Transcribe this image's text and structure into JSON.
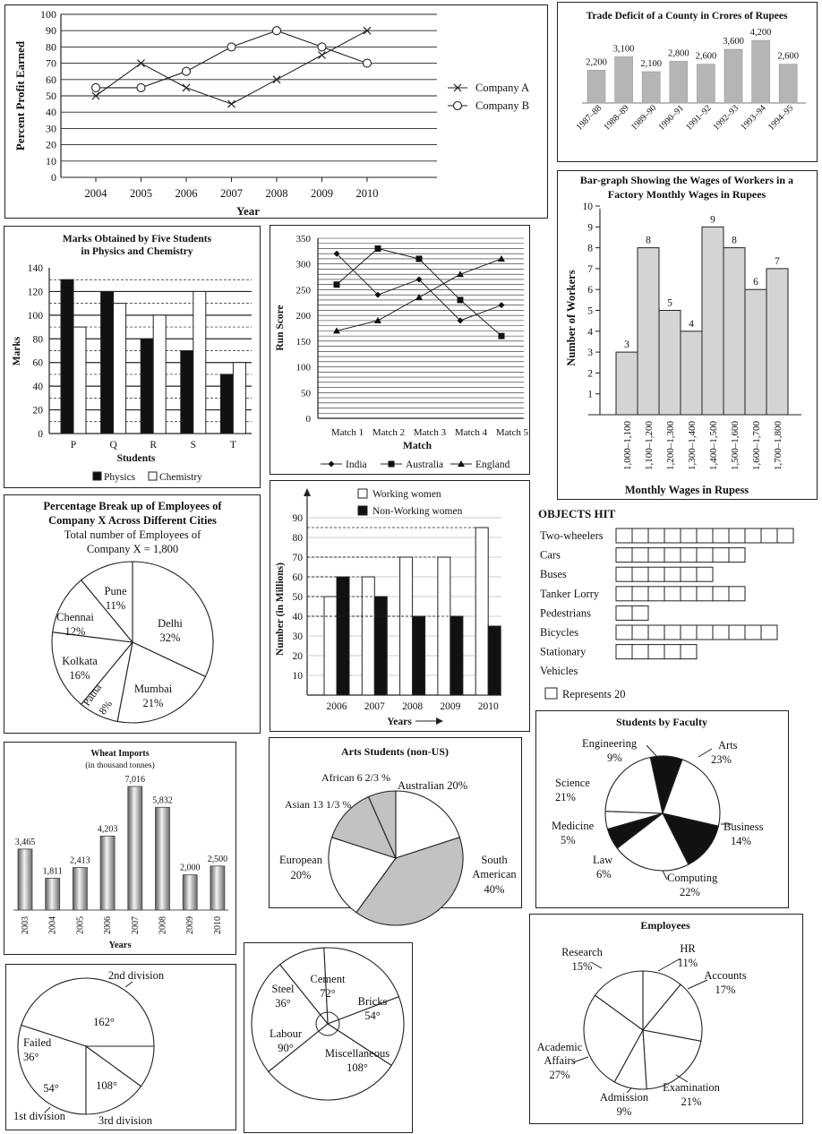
{
  "chart_data": [
    {
      "id": "profit",
      "type": "line",
      "ylabel": "Percent Profit Earned",
      "xlabel": "Year",
      "x": [
        "2004",
        "2005",
        "2006",
        "2007",
        "2008",
        "2009",
        "2010"
      ],
      "ylim": [
        0,
        100
      ],
      "yticks": [
        0,
        10,
        20,
        30,
        40,
        50,
        60,
        70,
        80,
        90,
        100
      ],
      "grid": true,
      "legend": "right",
      "series": [
        {
          "name": "Company A",
          "marker": "x",
          "values": [
            50,
            70,
            55,
            45,
            60,
            75,
            90
          ]
        },
        {
          "name": "Company B",
          "marker": "o",
          "values": [
            55,
            55,
            65,
            80,
            90,
            80,
            70
          ]
        }
      ]
    },
    {
      "id": "deficit",
      "type": "bar",
      "title": "Trade Deficit of a County in Crores of Rupees",
      "categories": [
        "1987–88",
        "1988–89",
        "1989–90",
        "1990–91",
        "1991–92",
        "1992–93",
        "1993–94",
        "1994–95"
      ],
      "values": [
        2200,
        3100,
        2100,
        2800,
        2600,
        3600,
        4200,
        2600
      ],
      "value_labels": [
        "2,200",
        "3,100",
        "2,100",
        "2,800",
        "2,600",
        "3,600",
        "4,200",
        "2,600"
      ]
    },
    {
      "id": "wages",
      "type": "bar",
      "title": "Bar-graph Showing the Wages of Workers in a Factory Monthly Wages in Rupees",
      "ylabel": "Number of Workers",
      "xlabel": "Monthly Wages in Rupess",
      "categories": [
        "1,000–1,100",
        "1,100–1,200",
        "1,200–1,300",
        "1,300–1,400",
        "1,400–1,500",
        "1,500–1,600",
        "1,600–1,700",
        "1,700–1,800"
      ],
      "values": [
        3,
        8,
        5,
        4,
        9,
        8,
        6,
        7
      ],
      "ylim": [
        0,
        10
      ],
      "yticks": [
        1,
        2,
        3,
        4,
        5,
        6,
        7,
        8,
        9,
        10
      ]
    },
    {
      "id": "marks",
      "type": "bar",
      "title": "Marks Obtained by Five Students in Physics and Chemistry",
      "ylabel": "Marks",
      "xlabel": "Students",
      "categories": [
        "P",
        "Q",
        "R",
        "S",
        "T"
      ],
      "ylim": [
        0,
        140
      ],
      "yticks": [
        0,
        20,
        40,
        60,
        80,
        100,
        120,
        140
      ],
      "series": [
        {
          "name": "Physics",
          "color": "#111111",
          "values": [
            130,
            120,
            80,
            70,
            50
          ]
        },
        {
          "name": "Chemistry",
          "color": "#ffffff",
          "values": [
            90,
            110,
            100,
            120,
            60
          ]
        }
      ],
      "legend": "bottom"
    },
    {
      "id": "runs",
      "type": "line",
      "ylabel": "Run Score",
      "xlabel": "Match",
      "x": [
        "Match 1",
        "Match 2",
        "Match 3",
        "Match 4",
        "Match 5"
      ],
      "ylim": [
        0,
        350
      ],
      "yticks": [
        0,
        50,
        100,
        150,
        200,
        250,
        300,
        350
      ],
      "grid": true,
      "legend": "bottom",
      "series": [
        {
          "name": "India",
          "marker": "diamond",
          "values": [
            320,
            240,
            270,
            190,
            220
          ]
        },
        {
          "name": "Australia",
          "marker": "square",
          "values": [
            260,
            330,
            310,
            230,
            160
          ]
        },
        {
          "name": "England",
          "marker": "triangle",
          "values": [
            170,
            190,
            235,
            280,
            310
          ]
        }
      ]
    },
    {
      "id": "employees_x",
      "type": "pie",
      "title": "Percentage Break up of Employees of Company X Across Different Cities",
      "subtitle": "Total number of Employees of Company X = 1,800",
      "slices": [
        {
          "label": "Delhi",
          "value": 32,
          "text": "32%"
        },
        {
          "label": "Mumbai",
          "value": 21,
          "text": "21%"
        },
        {
          "label": "Patna",
          "value": 8,
          "text": "8%"
        },
        {
          "label": "Kolkata",
          "value": 16,
          "text": "16%"
        },
        {
          "label": "Chennai",
          "value": 12,
          "text": "12%"
        },
        {
          "label": "Pune",
          "value": 11,
          "text": "11%"
        }
      ]
    },
    {
      "id": "women",
      "type": "bar",
      "ylabel": "Number (in Millions)",
      "xlabel": "Years",
      "categories": [
        "2006",
        "2007",
        "2008",
        "2009",
        "2010"
      ],
      "ylim": [
        0,
        90
      ],
      "yticks": [
        10,
        20,
        30,
        40,
        50,
        60,
        70,
        80,
        90
      ],
      "legend": "top",
      "series": [
        {
          "name": "Working women",
          "color": "#ffffff",
          "values": [
            50,
            60,
            70,
            70,
            85
          ]
        },
        {
          "name": "Non-Working women",
          "color": "#111111",
          "values": [
            60,
            50,
            40,
            40,
            35
          ]
        }
      ]
    },
    {
      "id": "objects",
      "type": "table",
      "title": "OBJECTS HIT",
      "rows": [
        {
          "label": "Two-wheelers",
          "count": 11
        },
        {
          "label": "Cars",
          "count": 8
        },
        {
          "label": "Buses",
          "count": 6
        },
        {
          "label": "Tanker Lorry",
          "count": 8
        },
        {
          "label": "Pedestrians",
          "count": 2
        },
        {
          "label": "Bicycles",
          "count": 10
        },
        {
          "label": "Stationary",
          "count": 5
        },
        {
          "label": "Vehicles",
          "count": 0
        }
      ],
      "key": "Represents 20"
    },
    {
      "id": "wheat",
      "type": "bar",
      "title": "Wheat Imports",
      "subtitle": "(in thousand tonnes)",
      "xlabel": "Years",
      "categories": [
        "2003",
        "2004",
        "2005",
        "2006",
        "2007",
        "2008",
        "2009",
        "2010"
      ],
      "values": [
        3465,
        1811,
        2413,
        4203,
        7016,
        5832,
        2000,
        2500
      ],
      "value_labels": [
        "3,465",
        "1,811",
        "2,413",
        "4,203",
        "7,016",
        "5,832",
        "2,000",
        "2,500"
      ]
    },
    {
      "id": "arts",
      "type": "pie",
      "title": "Arts Students (non-US)",
      "slices": [
        {
          "label": "Australian",
          "text": "20%",
          "value": 20
        },
        {
          "label": "South American",
          "text": "40%",
          "value": 40
        },
        {
          "label": "European",
          "text": "20%",
          "value": 20
        },
        {
          "label": "Asian",
          "text": "13 1/3 %",
          "value": 13.333
        },
        {
          "label": "African",
          "text": "6 2/3 %",
          "value": 6.667
        }
      ]
    },
    {
      "id": "faculty",
      "type": "pie",
      "title": "Students by Faculty",
      "slices": [
        {
          "label": "Arts",
          "text": "23%",
          "value": 23
        },
        {
          "label": "Business",
          "text": "14%",
          "value": 14
        },
        {
          "label": "Computing",
          "text": "22%",
          "value": 22
        },
        {
          "label": "Law",
          "text": "6%",
          "value": 6
        },
        {
          "label": "Medicine",
          "text": "5%",
          "value": 5
        },
        {
          "label": "Science",
          "text": "21%",
          "value": 21
        },
        {
          "label": "Engineering",
          "text": "9%",
          "value": 9
        }
      ]
    },
    {
      "id": "division",
      "type": "pie",
      "slices": [
        {
          "label": "2nd division",
          "text": "162°",
          "value": 162
        },
        {
          "label": "3rd division",
          "text": "108°",
          "value": 108
        },
        {
          "label": "1st division",
          "text": "54°",
          "value": 54
        },
        {
          "label": "Failed",
          "text": "36°",
          "value": 36
        }
      ]
    },
    {
      "id": "materials",
      "type": "pie",
      "slices": [
        {
          "label": "Cement",
          "text": "72°",
          "value": 72
        },
        {
          "label": "Bricks",
          "text": "54°",
          "value": 54
        },
        {
          "label": "Miscellaneous",
          "text": "108°",
          "value": 108
        },
        {
          "label": "Labour",
          "text": "90°",
          "value": 90
        },
        {
          "label": "Steel",
          "text": "36°",
          "value": 36
        }
      ]
    },
    {
      "id": "employees",
      "type": "pie",
      "title": "Employees",
      "slices": [
        {
          "label": "HR",
          "text": "11%",
          "value": 11
        },
        {
          "label": "Accounts",
          "text": "17%",
          "value": 17
        },
        {
          "label": "Examination",
          "text": "21%",
          "value": 21
        },
        {
          "label": "Admission",
          "text": "9%",
          "value": 9
        },
        {
          "label": "Academic Affairs",
          "text": "27%",
          "value": 27
        },
        {
          "label": "Research",
          "text": "15%",
          "value": 15
        }
      ]
    }
  ]
}
